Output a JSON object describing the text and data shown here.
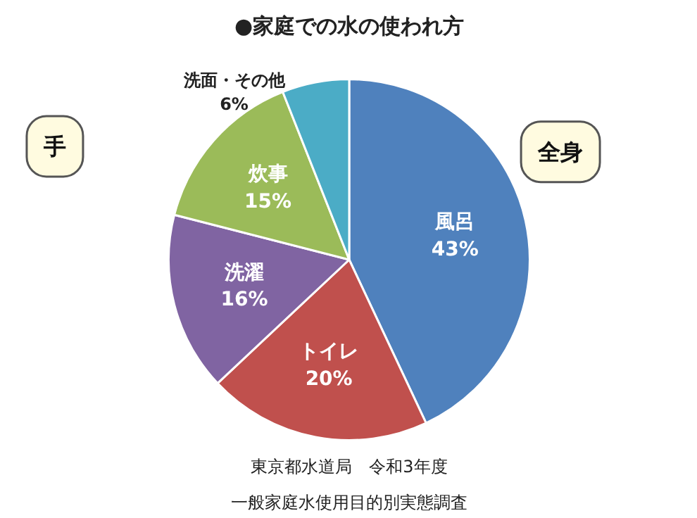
{
  "chart_data": {
    "type": "pie",
    "title": "●家庭での水の使われ方",
    "categories": [
      "風呂",
      "トイレ",
      "洗濯",
      "炊事",
      "洗面・その他"
    ],
    "values": [
      43,
      20,
      16,
      15,
      6
    ],
    "value_labels": [
      "43%",
      "20%",
      "16%",
      "15%",
      "6%"
    ],
    "colors": [
      "#4f81bd",
      "#c0504d",
      "#8064a2",
      "#9bbb59",
      "#4bacc6"
    ],
    "annotations": [
      "手",
      "全身",
      "東京都水道局　令和3年度",
      "一般家庭水使用目的別実態調査"
    ],
    "legend": false
  }
}
